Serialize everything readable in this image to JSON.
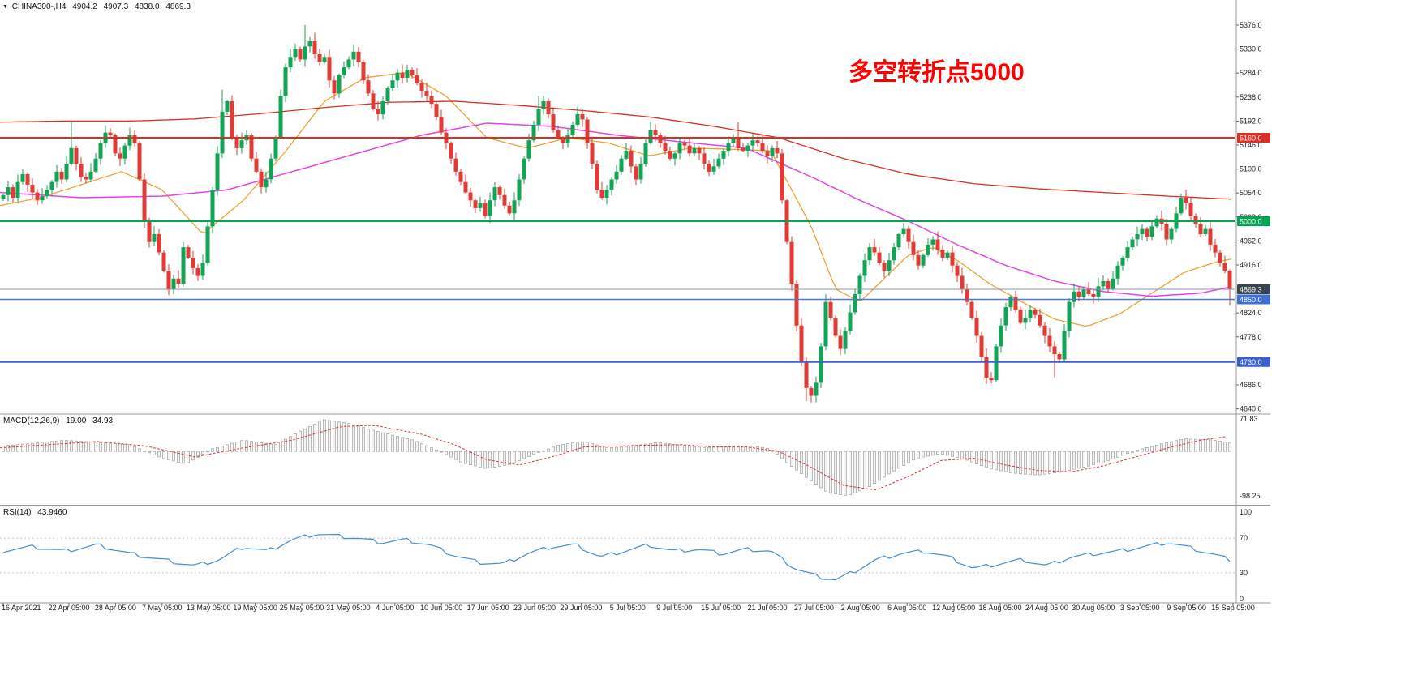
{
  "header": {
    "marker": "▼",
    "symbol": "CHINA300-,H4",
    "open": "4904.2",
    "high": "4907.3",
    "low": "4838.0",
    "close": "4869.3"
  },
  "annotation": {
    "text": "多空转折点5000",
    "color": "#fe0000"
  },
  "indicators": {
    "macd": {
      "name": "MACD(12,26,9)",
      "value_main": "19.00",
      "value_signal": "34.93",
      "axis_labels": [
        "71.83",
        "-98.25"
      ]
    },
    "rsi": {
      "name": "RSI(14)",
      "value": "43.9460",
      "axis_labels": [
        "100",
        "70",
        "30",
        "0"
      ],
      "levels": [
        70,
        30
      ]
    }
  },
  "price_axis": {
    "ticks": [
      "5376.0",
      "5330.0",
      "5284.0",
      "5238.0",
      "5192.0",
      "5146.0",
      "5100.0",
      "5054.0",
      "5008.0",
      "4962.0",
      "4916.0",
      "4824.0",
      "4778.0",
      "4686.0",
      "4640.0"
    ],
    "badges": [
      {
        "text": "5160.0",
        "price": 5160.0,
        "bg": "#d93025"
      },
      {
        "text": "5000.0",
        "price": 5000.0,
        "bg": "#00a651"
      },
      {
        "text": "4869.3",
        "price": 4869.3,
        "bg": "#37474f"
      },
      {
        "text": "4850.0",
        "price": 4850.0,
        "bg": "#3b6fd4"
      },
      {
        "text": "4730.0",
        "price": 4730.0,
        "bg": "#3b5fd0"
      }
    ]
  },
  "time_axis": {
    "labels": [
      "16 Apr 2021",
      "22 Apr 05:00",
      "28 Apr 05:00",
      "7 May 05:00",
      "13 May 05:00",
      "19 May 05:00",
      "25 May 05:00",
      "31 May 05:00",
      "4 Jun 05:00",
      "10 Jun 05:00",
      "17 Jun 05:00",
      "23 Jun 05:00",
      "29 Jun 05:00",
      "5 Jul 05:00",
      "9 Jul 05:00",
      "15 Jul 05:00",
      "21 Jul 05:00",
      "27 Jul 05:00",
      "2 Aug 05:00",
      "6 Aug 05:00",
      "12 Aug 05:00",
      "18 Aug 05:00",
      "24 Aug 05:00",
      "30 Aug 05:00",
      "3 Sep 05:00",
      "9 Sep 05:00",
      "15 Sep 05:00"
    ]
  },
  "colors": {
    "up": "#12a455",
    "down": "#e23b35",
    "ma_red": "#d93025",
    "ma_magenta": "#e544e5",
    "ma_orange": "#efa232",
    "level_red": "#d93025",
    "level_green": "#00a651",
    "level_blue1": "#4a7ad0",
    "level_blue2": "#3b5fd0",
    "last_price_line": "#8496ab",
    "macd_hist_fill": "#f4f4f4",
    "macd_hist_stroke": "#8f8f8f",
    "macd_signal": "#e03535",
    "rsi_line": "#3e8ed9",
    "rsi_levels": "#c2c2da",
    "axis_text": "#1a1a1a",
    "separator": "#9a9a9a"
  },
  "chart_data": {
    "type": "candlestick",
    "symbol": "CHINA300-",
    "timeframe": "H4",
    "current_bar": {
      "open": 4904.2,
      "high": 4907.3,
      "low": 4838.0,
      "close": 4869.3
    },
    "price_range": [
      4640,
      5376
    ],
    "last_price": 4869.3,
    "hlines": [
      {
        "price": 5160.0,
        "colorKey": "level_red",
        "width": 2
      },
      {
        "price": 5000.0,
        "colorKey": "level_green",
        "width": 2
      },
      {
        "price": 4850.0,
        "colorKey": "level_blue1",
        "width": 1.5
      },
      {
        "price": 4730.0,
        "colorKey": "level_blue2",
        "width": 2
      }
    ],
    "closes": [
      5050,
      5065,
      5045,
      5075,
      5090,
      5070,
      5055,
      5040,
      5048,
      5060,
      5075,
      5095,
      5080,
      5110,
      5140,
      5110,
      5085,
      5080,
      5095,
      5120,
      5150,
      5170,
      5165,
      5130,
      5120,
      5145,
      5165,
      5150,
      5080,
      5000,
      4960,
      4975,
      4940,
      4905,
      4870,
      4890,
      4880,
      4950,
      4930,
      4910,
      4895,
      4920,
      4990,
      5060,
      5130,
      5210,
      5230,
      5160,
      5140,
      5155,
      5165,
      5120,
      5095,
      5065,
      5080,
      5120,
      5160,
      5240,
      5295,
      5315,
      5330,
      5310,
      5335,
      5345,
      5320,
      5305,
      5315,
      5270,
      5245,
      5280,
      5295,
      5310,
      5325,
      5305,
      5270,
      5245,
      5215,
      5205,
      5230,
      5255,
      5270,
      5285,
      5275,
      5290,
      5280,
      5265,
      5250,
      5240,
      5225,
      5200,
      5170,
      5150,
      5120,
      5095,
      5075,
      5055,
      5040,
      5025,
      5035,
      5010,
      5040,
      5065,
      5050,
      5030,
      5015,
      5040,
      5080,
      5120,
      5155,
      5185,
      5215,
      5230,
      5205,
      5175,
      5160,
      5150,
      5165,
      5185,
      5205,
      5195,
      5150,
      5110,
      5060,
      5045,
      5060,
      5080,
      5095,
      5120,
      5135,
      5105,
      5080,
      5110,
      5150,
      5175,
      5165,
      5150,
      5135,
      5120,
      5130,
      5150,
      5145,
      5130,
      5140,
      5130,
      5110,
      5095,
      5105,
      5120,
      5135,
      5150,
      5160,
      5140,
      5135,
      5145,
      5155,
      5150,
      5135,
      5125,
      5140,
      5130,
      5040,
      4960,
      4880,
      4800,
      4730,
      4680,
      4665,
      4690,
      4760,
      4845,
      4815,
      4780,
      4755,
      4790,
      4825,
      4860,
      4895,
      4925,
      4950,
      4940,
      4920,
      4905,
      4925,
      4950,
      4975,
      4985,
      4960,
      4935,
      4915,
      4935,
      4955,
      4965,
      4945,
      4930,
      4940,
      4915,
      4895,
      4870,
      4845,
      4815,
      4780,
      4740,
      4700,
      4695,
      4760,
      4800,
      4835,
      4855,
      4830,
      4805,
      4815,
      4830,
      4820,
      4800,
      4780,
      4760,
      4745,
      4735,
      4790,
      4845,
      4865,
      4855,
      4870,
      4860,
      4855,
      4875,
      4885,
      4870,
      4890,
      4915,
      4930,
      4950,
      4965,
      4975,
      4985,
      4970,
      4990,
      5005,
      4995,
      4965,
      4985,
      5015,
      5045,
      5035,
      5010,
      4995,
      4975,
      4985,
      4955,
      4940,
      4920,
      4905,
      4869.3
    ],
    "wick_high": {
      "14": 5190,
      "45": 5252,
      "62": 5376,
      "110": 5240,
      "151": 5190,
      "252": 4907.3
    },
    "wick_low": {
      "34": 4858,
      "165": 4655,
      "166": 4652,
      "202": 4688,
      "216": 4700,
      "252": 4838.0
    },
    "ma_red": [
      [
        0,
        5190
      ],
      [
        80,
        5192
      ],
      [
        160,
        5192
      ],
      [
        240,
        5196
      ],
      [
        320,
        5206
      ],
      [
        400,
        5218
      ],
      [
        480,
        5228
      ],
      [
        560,
        5230
      ],
      [
        640,
        5222
      ],
      [
        720,
        5212
      ],
      [
        800,
        5200
      ],
      [
        880,
        5182
      ],
      [
        960,
        5160
      ],
      [
        1040,
        5120
      ],
      [
        1120,
        5090
      ],
      [
        1200,
        5072
      ],
      [
        1280,
        5062
      ],
      [
        1360,
        5055
      ],
      [
        1440,
        5048
      ],
      [
        1520,
        5042
      ]
    ],
    "ma_magenta": [
      [
        0,
        5055
      ],
      [
        100,
        5045
      ],
      [
        200,
        5048
      ],
      [
        280,
        5060
      ],
      [
        360,
        5095
      ],
      [
        440,
        5130
      ],
      [
        520,
        5165
      ],
      [
        600,
        5188
      ],
      [
        680,
        5182
      ],
      [
        760,
        5165
      ],
      [
        840,
        5152
      ],
      [
        920,
        5140
      ],
      [
        1000,
        5085
      ],
      [
        1060,
        5040
      ],
      [
        1120,
        5000
      ],
      [
        1180,
        4955
      ],
      [
        1240,
        4915
      ],
      [
        1300,
        4885
      ],
      [
        1360,
        4865
      ],
      [
        1420,
        4856
      ],
      [
        1480,
        4862
      ],
      [
        1520,
        4875
      ]
    ],
    "ma_orange": [
      [
        0,
        5030
      ],
      [
        50,
        5045
      ],
      [
        100,
        5070
      ],
      [
        150,
        5095
      ],
      [
        200,
        5060
      ],
      [
        250,
        4975
      ],
      [
        300,
        5040
      ],
      [
        350,
        5130
      ],
      [
        400,
        5230
      ],
      [
        450,
        5275
      ],
      [
        500,
        5285
      ],
      [
        550,
        5240
      ],
      [
        600,
        5160
      ],
      [
        650,
        5140
      ],
      [
        700,
        5160
      ],
      [
        750,
        5150
      ],
      [
        800,
        5125
      ],
      [
        850,
        5140
      ],
      [
        900,
        5138
      ],
      [
        950,
        5135
      ],
      [
        1000,
        4990
      ],
      [
        1030,
        4870
      ],
      [
        1060,
        4845
      ],
      [
        1090,
        4890
      ],
      [
        1120,
        4935
      ],
      [
        1150,
        4950
      ],
      [
        1180,
        4925
      ],
      [
        1220,
        4880
      ],
      [
        1260,
        4845
      ],
      [
        1300,
        4812
      ],
      [
        1340,
        4798
      ],
      [
        1380,
        4822
      ],
      [
        1420,
        4862
      ],
      [
        1460,
        4902
      ],
      [
        1500,
        4922
      ],
      [
        1520,
        4928
      ]
    ],
    "macd": {
      "params": "12,26,9",
      "current_main": 19.0,
      "current_signal": 34.93,
      "axis_max": 71.83,
      "axis_min": -98.25,
      "histogram": [
        [
          0,
          12
        ],
        [
          40,
          18
        ],
        [
          80,
          25
        ],
        [
          120,
          20
        ],
        [
          160,
          15
        ],
        [
          200,
          -15
        ],
        [
          230,
          -28
        ],
        [
          260,
          5
        ],
        [
          300,
          25
        ],
        [
          340,
          15
        ],
        [
          370,
          45
        ],
        [
          400,
          70
        ],
        [
          430,
          62
        ],
        [
          470,
          42
        ],
        [
          510,
          25
        ],
        [
          540,
          2
        ],
        [
          570,
          -25
        ],
        [
          600,
          -38
        ],
        [
          630,
          -28
        ],
        [
          660,
          -5
        ],
        [
          690,
          15
        ],
        [
          720,
          22
        ],
        [
          750,
          8
        ],
        [
          780,
          12
        ],
        [
          810,
          20
        ],
        [
          840,
          14
        ],
        [
          870,
          8
        ],
        [
          900,
          12
        ],
        [
          930,
          12
        ],
        [
          950,
          6
        ],
        [
          970,
          -25
        ],
        [
          1000,
          -65
        ],
        [
          1020,
          -90
        ],
        [
          1045,
          -98
        ],
        [
          1070,
          -80
        ],
        [
          1100,
          -45
        ],
        [
          1130,
          -15
        ],
        [
          1160,
          -5
        ],
        [
          1190,
          -18
        ],
        [
          1220,
          -38
        ],
        [
          1250,
          -48
        ],
        [
          1280,
          -52
        ],
        [
          1310,
          -45
        ],
        [
          1340,
          -33
        ],
        [
          1370,
          -18
        ],
        [
          1400,
          2
        ],
        [
          1430,
          16
        ],
        [
          1460,
          28
        ],
        [
          1490,
          26
        ],
        [
          1520,
          19
        ]
      ],
      "signal": [
        [
          0,
          8
        ],
        [
          60,
          15
        ],
        [
          120,
          22
        ],
        [
          180,
          12
        ],
        [
          240,
          -12
        ],
        [
          300,
          8
        ],
        [
          360,
          25
        ],
        [
          420,
          55
        ],
        [
          460,
          58
        ],
        [
          520,
          38
        ],
        [
          560,
          15
        ],
        [
          600,
          -18
        ],
        [
          640,
          -30
        ],
        [
          680,
          -12
        ],
        [
          720,
          10
        ],
        [
          760,
          12
        ],
        [
          800,
          14
        ],
        [
          840,
          15
        ],
        [
          880,
          10
        ],
        [
          920,
          10
        ],
        [
          960,
          0
        ],
        [
          1000,
          -35
        ],
        [
          1040,
          -75
        ],
        [
          1080,
          -85
        ],
        [
          1120,
          -55
        ],
        [
          1160,
          -20
        ],
        [
          1200,
          -15
        ],
        [
          1240,
          -30
        ],
        [
          1280,
          -42
        ],
        [
          1320,
          -45
        ],
        [
          1360,
          -32
        ],
        [
          1400,
          -12
        ],
        [
          1440,
          8
        ],
        [
          1480,
          25
        ],
        [
          1520,
          35
        ]
      ]
    },
    "rsi": {
      "period": 14,
      "current": 43.946,
      "range": [
        0,
        100
      ],
      "levels": [
        70,
        30
      ],
      "line": [
        [
          0,
          55
        ],
        [
          40,
          60
        ],
        [
          80,
          55
        ],
        [
          120,
          62
        ],
        [
          160,
          52
        ],
        [
          200,
          45
        ],
        [
          240,
          38
        ],
        [
          270,
          45
        ],
        [
          300,
          60
        ],
        [
          330,
          55
        ],
        [
          360,
          68
        ],
        [
          390,
          75
        ],
        [
          410,
          73
        ],
        [
          440,
          70
        ],
        [
          470,
          65
        ],
        [
          500,
          68
        ],
        [
          530,
          62
        ],
        [
          560,
          50
        ],
        [
          590,
          42
        ],
        [
          620,
          40
        ],
        [
          650,
          52
        ],
        [
          680,
          60
        ],
        [
          710,
          62
        ],
        [
          740,
          48
        ],
        [
          770,
          55
        ],
        [
          800,
          62
        ],
        [
          830,
          55
        ],
        [
          860,
          57
        ],
        [
          890,
          52
        ],
        [
          920,
          57
        ],
        [
          950,
          55
        ],
        [
          980,
          35
        ],
        [
          1010,
          25
        ],
        [
          1030,
          22
        ],
        [
          1050,
          30
        ],
        [
          1080,
          45
        ],
        [
          1110,
          52
        ],
        [
          1140,
          55
        ],
        [
          1170,
          48
        ],
        [
          1200,
          35
        ],
        [
          1230,
          40
        ],
        [
          1260,
          45
        ],
        [
          1290,
          38
        ],
        [
          1320,
          48
        ],
        [
          1350,
          52
        ],
        [
          1380,
          55
        ],
        [
          1410,
          60
        ],
        [
          1440,
          65
        ],
        [
          1470,
          58
        ],
        [
          1500,
          50
        ],
        [
          1520,
          44
        ]
      ]
    }
  }
}
